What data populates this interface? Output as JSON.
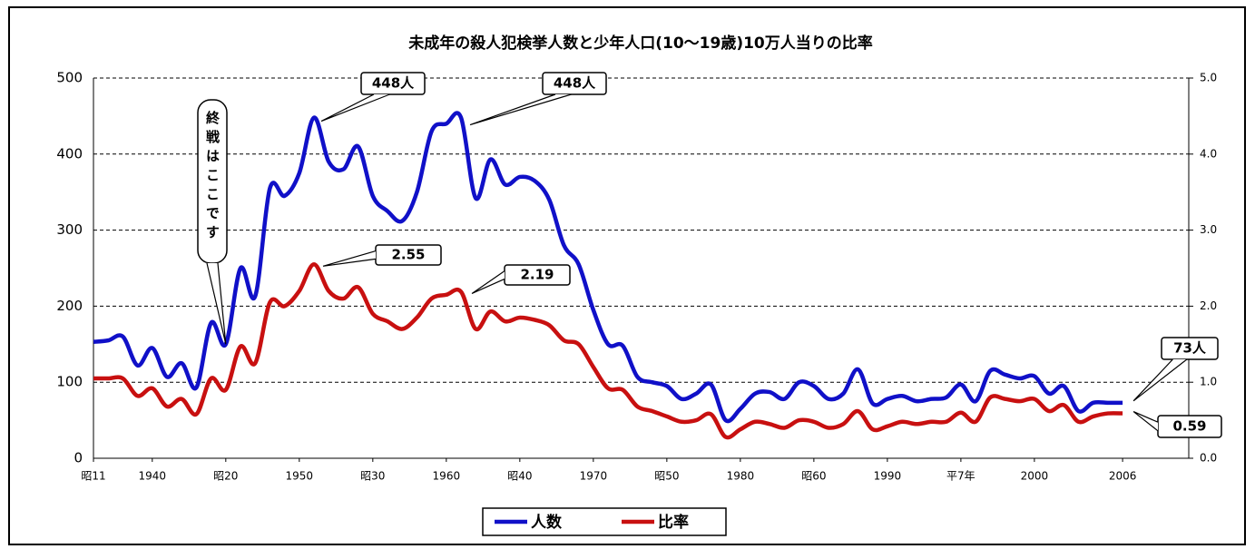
{
  "chart_data": {
    "type": "line",
    "title": "未成年の殺人犯検挙人数と少年人口(10〜19歳)10万人当りの比率",
    "x": [
      1936,
      1937,
      1938,
      1939,
      1940,
      1941,
      1942,
      1943,
      1944,
      1945,
      1946,
      1947,
      1948,
      1949,
      1950,
      1951,
      1952,
      1953,
      1954,
      1955,
      1956,
      1957,
      1958,
      1959,
      1960,
      1961,
      1962,
      1963,
      1964,
      1965,
      1966,
      1967,
      1968,
      1969,
      1970,
      1971,
      1972,
      1973,
      1974,
      1975,
      1976,
      1977,
      1978,
      1979,
      1980,
      1981,
      1982,
      1983,
      1984,
      1985,
      1986,
      1987,
      1988,
      1989,
      1990,
      1991,
      1992,
      1993,
      1994,
      1995,
      1996,
      1997,
      1998,
      1999,
      2000,
      2001,
      2002,
      2003,
      2004,
      2005,
      2006
    ],
    "series": [
      {
        "name": "人数",
        "color": "#1010c8",
        "values": [
          153,
          155,
          160,
          122,
          145,
          107,
          125,
          93,
          178,
          150,
          250,
          213,
          355,
          345,
          375,
          448,
          390,
          380,
          410,
          345,
          325,
          312,
          350,
          430,
          440,
          448,
          342,
          393,
          360,
          370,
          365,
          340,
          280,
          255,
          195,
          150,
          148,
          107,
          100,
          95,
          78,
          85,
          97,
          50,
          65,
          85,
          87,
          78,
          100,
          95,
          78,
          85,
          117,
          72,
          78,
          82,
          75,
          78,
          80,
          97,
          75,
          115,
          110,
          105,
          108,
          85,
          95,
          62,
          73,
          73,
          73
        ]
      },
      {
        "name": "比率",
        "color": "#c81010",
        "axis": "y2",
        "values": [
          1.05,
          1.05,
          1.05,
          0.82,
          0.92,
          0.68,
          0.78,
          0.58,
          1.05,
          0.9,
          1.47,
          1.25,
          2.05,
          2.0,
          2.2,
          2.55,
          2.2,
          2.1,
          2.25,
          1.9,
          1.8,
          1.7,
          1.85,
          2.1,
          2.15,
          2.19,
          1.7,
          1.93,
          1.8,
          1.85,
          1.82,
          1.75,
          1.55,
          1.5,
          1.2,
          0.92,
          0.9,
          0.68,
          0.62,
          0.55,
          0.48,
          0.5,
          0.58,
          0.28,
          0.38,
          0.48,
          0.45,
          0.4,
          0.5,
          0.48,
          0.4,
          0.45,
          0.62,
          0.38,
          0.42,
          0.48,
          0.45,
          0.48,
          0.48,
          0.6,
          0.48,
          0.8,
          0.78,
          0.75,
          0.78,
          0.62,
          0.7,
          0.48,
          0.55,
          0.59,
          0.59
        ]
      }
    ],
    "xlim": [
      1936,
      2010.5
    ],
    "xticks": [
      {
        "value": 1936,
        "label": "昭11"
      },
      1940,
      {
        "value": 1945,
        "label": "昭20"
      },
      1950,
      {
        "value": 1955,
        "label": "昭30"
      },
      1960,
      {
        "value": 1965,
        "label": "昭40"
      },
      1970,
      {
        "value": 1975,
        "label": "昭50"
      },
      1980,
      {
        "value": 1985,
        "label": "昭60"
      },
      1990,
      {
        "value": 1995,
        "label": "平7年"
      },
      2000,
      2006
    ],
    "ylim": [
      0,
      500
    ],
    "yticks": [
      0,
      100,
      200,
      300,
      400,
      500
    ],
    "y2lim": [
      0,
      5
    ],
    "y2ticks": [
      {
        "value": 0,
        "label": "0.0"
      },
      {
        "value": 1,
        "label": "1.0"
      },
      {
        "value": 2,
        "label": "2.0"
      },
      {
        "value": 3,
        "label": "3.0"
      },
      {
        "value": 4,
        "label": "4.0"
      },
      {
        "value": 5,
        "label": "5.0"
      }
    ],
    "grid": true,
    "legend": "bottom",
    "annotations": [
      "終戦はここです",
      "448人",
      "448人",
      "2.55",
      "2.19",
      "73人",
      "0.59"
    ]
  }
}
